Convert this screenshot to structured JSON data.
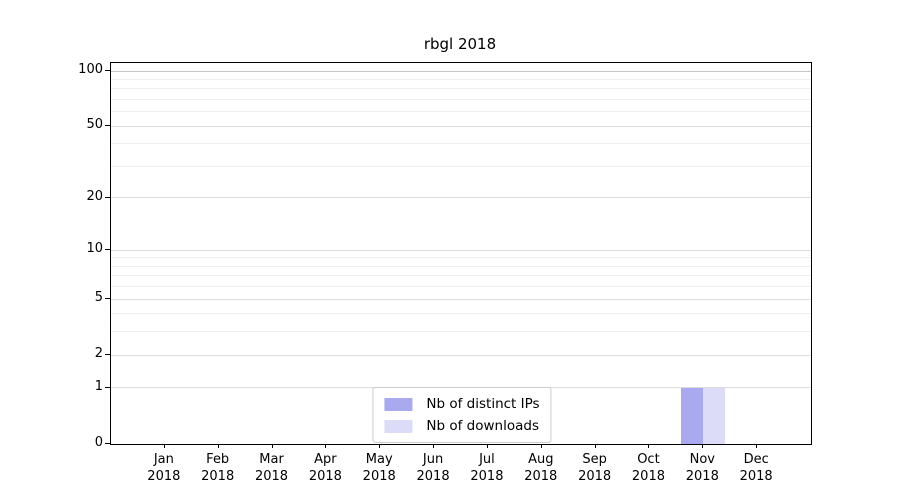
{
  "title": "rbgl 2018",
  "chart_data": {
    "type": "bar",
    "title": "rbgl 2018",
    "categories": [
      "Jan",
      "Feb",
      "Mar",
      "Apr",
      "May",
      "Jun",
      "Jul",
      "Aug",
      "Sep",
      "Oct",
      "Nov",
      "Dec"
    ],
    "year": "2018",
    "series": [
      {
        "name": "Nb of distinct IPs",
        "color": "#a9a9f0",
        "values": [
          0,
          0,
          0,
          0,
          0,
          0,
          0,
          0,
          0,
          0,
          1,
          0
        ]
      },
      {
        "name": "Nb of downloads",
        "color": "#dcdcf8",
        "values": [
          0,
          0,
          0,
          0,
          0,
          0,
          0,
          0,
          0,
          0,
          1,
          0
        ]
      }
    ],
    "y_axis": {
      "scale": "log1p",
      "ylim": [
        0,
        110.6
      ],
      "major_ticks": [
        0,
        1,
        2,
        5,
        10,
        20,
        50,
        100
      ],
      "minor_ticks": [
        3,
        4,
        6,
        7,
        8,
        9,
        30,
        40,
        60,
        70,
        80,
        90
      ]
    },
    "legend": {
      "position": "lower center"
    },
    "grid": {
      "major_color": "#dcdcdc",
      "minor_color": "#efefef",
      "top_line_color": "#c6c6c6"
    }
  }
}
